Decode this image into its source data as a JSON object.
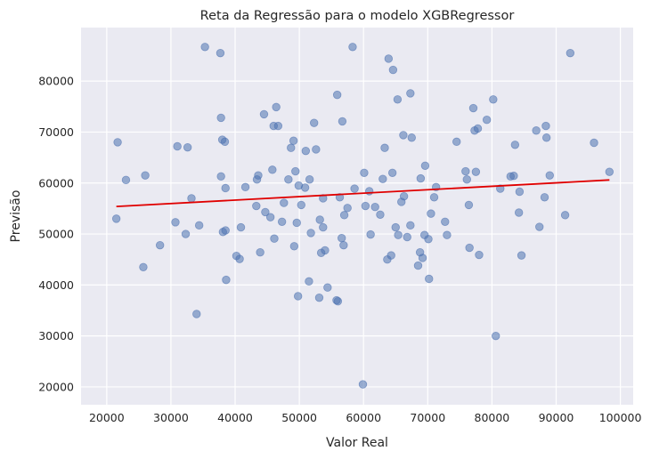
{
  "chart_data": {
    "type": "scatter",
    "title": "Reta da Regressão para o modelo XGBRegressor",
    "xlabel": "Valor Real",
    "ylabel": "Previsão",
    "xlim": [
      16000,
      102000
    ],
    "ylim": [
      16500,
      90500
    ],
    "xticks": [
      20000,
      30000,
      40000,
      50000,
      60000,
      70000,
      80000,
      90000,
      100000
    ],
    "yticks": [
      20000,
      30000,
      40000,
      50000,
      60000,
      70000,
      80000
    ],
    "grid": true,
    "colors": {
      "background": "#eaeaf2",
      "grid": "#ffffff",
      "points": "#4c72b0",
      "line": "#e00000"
    },
    "regression_line": {
      "x": [
        21500,
        98300
      ],
      "y": [
        55400,
        60600
      ]
    },
    "points": [
      [
        21500,
        53000
      ],
      [
        21700,
        68000
      ],
      [
        23000,
        60600
      ],
      [
        25700,
        43500
      ],
      [
        26000,
        61500
      ],
      [
        28300,
        47800
      ],
      [
        30700,
        52300
      ],
      [
        31000,
        67200
      ],
      [
        32300,
        50000
      ],
      [
        32600,
        67000
      ],
      [
        33200,
        57000
      ],
      [
        34000,
        34300
      ],
      [
        34400,
        51700
      ],
      [
        35300,
        86700
      ],
      [
        37700,
        85500
      ],
      [
        37800,
        61300
      ],
      [
        37800,
        72800
      ],
      [
        38000,
        68500
      ],
      [
        38100,
        50400
      ],
      [
        38400,
        68100
      ],
      [
        38500,
        59000
      ],
      [
        38500,
        50700
      ],
      [
        38600,
        41000
      ],
      [
        40200,
        45700
      ],
      [
        40700,
        45100
      ],
      [
        40900,
        51300
      ],
      [
        41600,
        59200
      ],
      [
        43300,
        55500
      ],
      [
        43400,
        60700
      ],
      [
        43600,
        61500
      ],
      [
        43900,
        46400
      ],
      [
        44500,
        73500
      ],
      [
        44700,
        54300
      ],
      [
        45500,
        53300
      ],
      [
        45800,
        62600
      ],
      [
        46000,
        71200
      ],
      [
        46100,
        49100
      ],
      [
        46400,
        74900
      ],
      [
        46700,
        71200
      ],
      [
        47300,
        52400
      ],
      [
        47600,
        56100
      ],
      [
        48300,
        60700
      ],
      [
        48700,
        66900
      ],
      [
        49100,
        68300
      ],
      [
        49200,
        47600
      ],
      [
        49400,
        62300
      ],
      [
        49600,
        52200
      ],
      [
        49800,
        37800
      ],
      [
        49900,
        59500
      ],
      [
        50300,
        55700
      ],
      [
        50900,
        59100
      ],
      [
        51000,
        66300
      ],
      [
        51500,
        40700
      ],
      [
        51600,
        60700
      ],
      [
        51800,
        50200
      ],
      [
        52300,
        71800
      ],
      [
        52600,
        66600
      ],
      [
        53100,
        37500
      ],
      [
        53200,
        52800
      ],
      [
        53400,
        46300
      ],
      [
        53700,
        57000
      ],
      [
        53700,
        51300
      ],
      [
        54000,
        46800
      ],
      [
        54400,
        39500
      ],
      [
        55800,
        37000
      ],
      [
        55900,
        77300
      ],
      [
        56000,
        36800
      ],
      [
        56300,
        57200
      ],
      [
        56600,
        49200
      ],
      [
        56700,
        72100
      ],
      [
        56900,
        47800
      ],
      [
        57000,
        53700
      ],
      [
        57500,
        55100
      ],
      [
        58300,
        86700
      ],
      [
        58600,
        58900
      ],
      [
        59900,
        20500
      ],
      [
        60100,
        62000
      ],
      [
        60300,
        55500
      ],
      [
        60900,
        58400
      ],
      [
        61100,
        49900
      ],
      [
        61800,
        55300
      ],
      [
        62600,
        53800
      ],
      [
        63000,
        60800
      ],
      [
        63300,
        66900
      ],
      [
        63700,
        45000
      ],
      [
        63900,
        84400
      ],
      [
        64300,
        45800
      ],
      [
        64500,
        62000
      ],
      [
        64600,
        82200
      ],
      [
        65000,
        51300
      ],
      [
        65300,
        76400
      ],
      [
        65400,
        49800
      ],
      [
        65900,
        56300
      ],
      [
        66200,
        69400
      ],
      [
        66300,
        57400
      ],
      [
        66800,
        49400
      ],
      [
        67300,
        51700
      ],
      [
        67300,
        77600
      ],
      [
        67500,
        68900
      ],
      [
        68500,
        43800
      ],
      [
        68800,
        46400
      ],
      [
        68900,
        60900
      ],
      [
        69200,
        45300
      ],
      [
        69500,
        49800
      ],
      [
        69600,
        63400
      ],
      [
        70100,
        49000
      ],
      [
        70200,
        41200
      ],
      [
        70500,
        54000
      ],
      [
        71000,
        57200
      ],
      [
        71300,
        59200
      ],
      [
        72700,
        52400
      ],
      [
        73000,
        49800
      ],
      [
        74500,
        68100
      ],
      [
        75900,
        62300
      ],
      [
        76100,
        60700
      ],
      [
        76400,
        55700
      ],
      [
        76500,
        47300
      ],
      [
        77100,
        74700
      ],
      [
        77300,
        70300
      ],
      [
        77500,
        62200
      ],
      [
        77800,
        70700
      ],
      [
        78000,
        45900
      ],
      [
        79200,
        72400
      ],
      [
        80200,
        76400
      ],
      [
        80600,
        30000
      ],
      [
        81300,
        58900
      ],
      [
        82900,
        61300
      ],
      [
        83400,
        61400
      ],
      [
        83600,
        67500
      ],
      [
        84200,
        54200
      ],
      [
        84300,
        58300
      ],
      [
        84600,
        45800
      ],
      [
        86900,
        70300
      ],
      [
        87400,
        51400
      ],
      [
        88200,
        57200
      ],
      [
        88400,
        71200
      ],
      [
        88500,
        68900
      ],
      [
        89000,
        61500
      ],
      [
        91400,
        53700
      ],
      [
        92200,
        85500
      ],
      [
        95900,
        67900
      ],
      [
        98300,
        62200
      ]
    ]
  }
}
